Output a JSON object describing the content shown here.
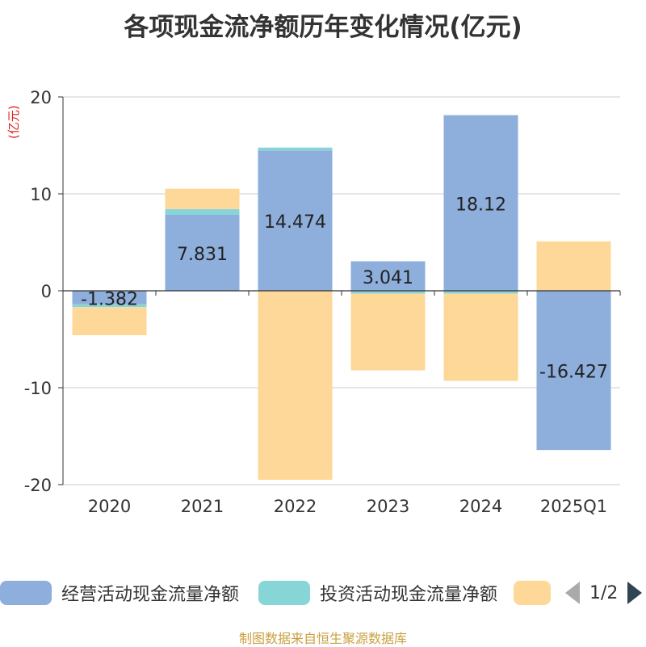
{
  "chart_data": {
    "type": "bar",
    "stacked": true,
    "title": "各项现金流净额历年变化情况(亿元)",
    "ylabel": "(亿元)",
    "ylim": [
      -20,
      20
    ],
    "yticks": [
      20,
      10,
      0,
      -10,
      -20
    ],
    "categories": [
      "2020",
      "2021",
      "2022",
      "2023",
      "2024",
      "2025Q1"
    ],
    "series": [
      {
        "name": "经营活动现金流量净额",
        "color": "#8eaedb",
        "values": [
          -1.382,
          7.831,
          14.474,
          3.041,
          18.12,
          -16.427
        ],
        "labels": [
          "-1.382",
          "7.831",
          "14.474",
          "3.041",
          "18.12",
          "-16.427"
        ]
      },
      {
        "name": "投资活动现金流量净额",
        "color": "#88d5d8",
        "values": [
          -0.3,
          0.6,
          0.3,
          -0.3,
          -0.3,
          0
        ]
      },
      {
        "name": "",
        "color": "#fed898",
        "values": [
          -2.9,
          2.1,
          -19.5,
          -7.9,
          -9.0,
          5.1
        ]
      }
    ]
  },
  "legend": {
    "items": [
      {
        "label": "经营活动现金流量净额"
      },
      {
        "label": "投资活动现金流量净额"
      }
    ],
    "pager": "1/2"
  },
  "source": "制图数据来自恒生聚源数据库"
}
